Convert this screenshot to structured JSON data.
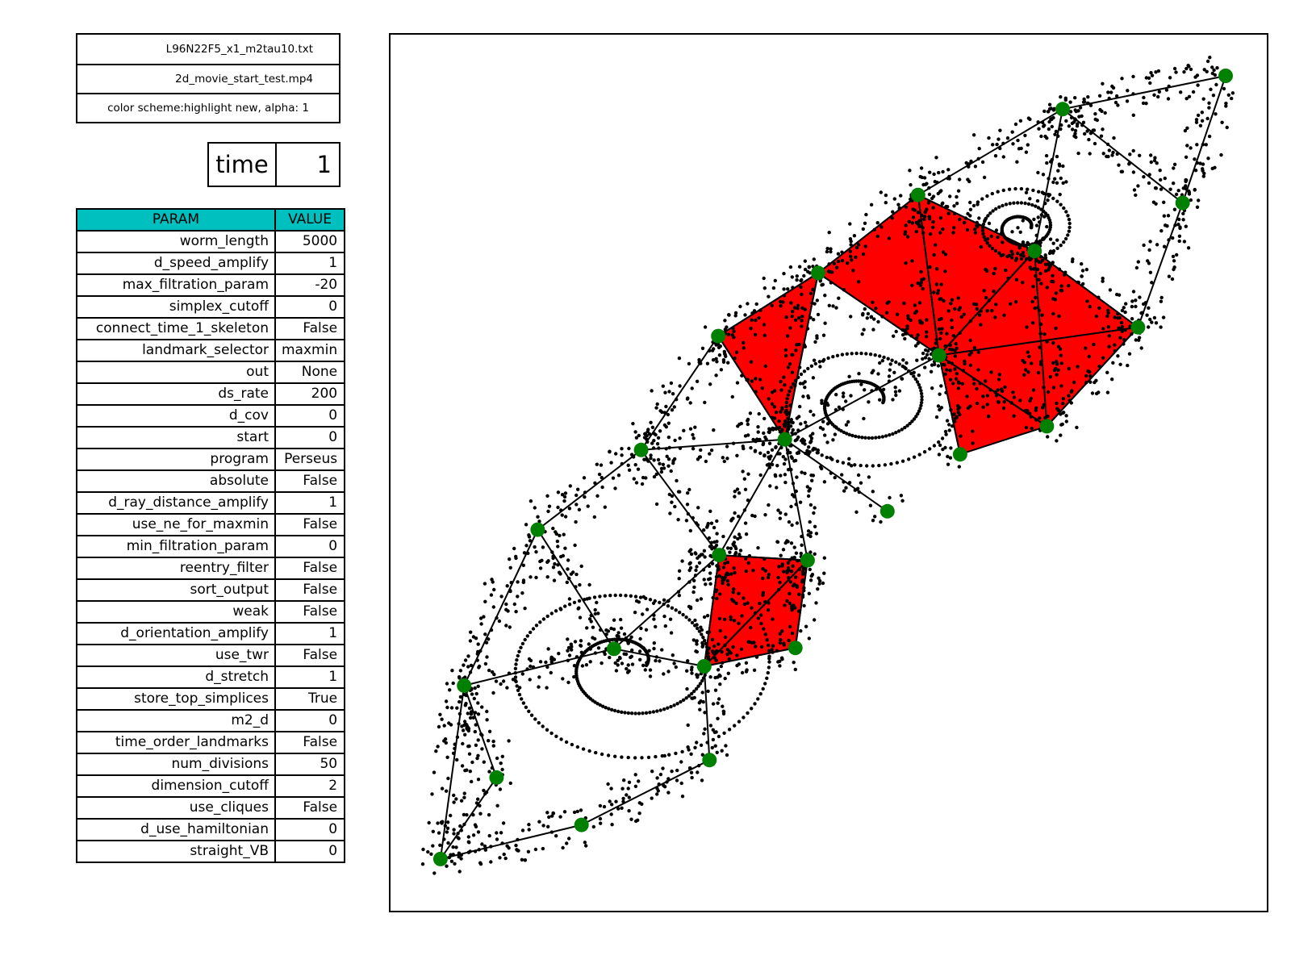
{
  "info": {
    "filename": "L96N22F5_x1_m2tau10.txt",
    "movie": "2d_movie_start_test.mp4",
    "color_scheme": "color scheme:highlight new, alpha: 1"
  },
  "time": {
    "label": "time",
    "value": "1"
  },
  "params_table": {
    "headers": [
      "PARAM",
      "VALUE"
    ],
    "rows": [
      [
        "worm_length",
        "5000"
      ],
      [
        "d_speed_amplify",
        "1"
      ],
      [
        "max_filtration_param",
        "-20"
      ],
      [
        "simplex_cutoff",
        "0"
      ],
      [
        "connect_time_1_skeleton",
        "False"
      ],
      [
        "landmark_selector",
        "maxmin"
      ],
      [
        "out",
        "None"
      ],
      [
        "ds_rate",
        "200"
      ],
      [
        "d_cov",
        "0"
      ],
      [
        "start",
        "0"
      ],
      [
        "program",
        "Perseus"
      ],
      [
        "absolute",
        "False"
      ],
      [
        "d_ray_distance_amplify",
        "1"
      ],
      [
        "use_ne_for_maxmin",
        "False"
      ],
      [
        "min_filtration_param",
        "0"
      ],
      [
        "reentry_filter",
        "False"
      ],
      [
        "sort_output",
        "False"
      ],
      [
        "weak",
        "False"
      ],
      [
        "d_orientation_amplify",
        "1"
      ],
      [
        "use_twr",
        "False"
      ],
      [
        "d_stretch",
        "1"
      ],
      [
        "store_top_simplices",
        "True"
      ],
      [
        "m2_d",
        "0"
      ],
      [
        "time_order_landmarks",
        "False"
      ],
      [
        "num_divisions",
        "50"
      ],
      [
        "dimension_cutoff",
        "2"
      ],
      [
        "use_cliques",
        "False"
      ],
      [
        "d_use_hamiltonian",
        "0"
      ],
      [
        "straight_VB",
        "0"
      ]
    ]
  },
  "chart_data": {
    "type": "scatter",
    "title": "",
    "xlabel": "",
    "ylabel": "",
    "axes_visible": false,
    "xlim": [
      0,
      100
    ],
    "ylim": [
      0,
      100
    ],
    "colors": {
      "landmark": "#008000",
      "point": "#000000",
      "simplex": "#ff0000",
      "edge": "#000000"
    },
    "landmarks": [
      {
        "id": 0,
        "x": 95.3,
        "y": 95.3
      },
      {
        "id": 1,
        "x": 76.7,
        "y": 91.5
      },
      {
        "id": 2,
        "x": 90.4,
        "y": 80.8
      },
      {
        "id": 3,
        "x": 60.2,
        "y": 81.7
      },
      {
        "id": 4,
        "x": 73.5,
        "y": 75.3
      },
      {
        "id": 5,
        "x": 48.8,
        "y": 72.8
      },
      {
        "id": 6,
        "x": 85.3,
        "y": 66.6
      },
      {
        "id": 7,
        "x": 37.4,
        "y": 65.6
      },
      {
        "id": 8,
        "x": 62.6,
        "y": 63.4
      },
      {
        "id": 9,
        "x": 45.0,
        "y": 53.8
      },
      {
        "id": 10,
        "x": 74.9,
        "y": 55.3
      },
      {
        "id": 11,
        "x": 65.0,
        "y": 52.1
      },
      {
        "id": 12,
        "x": 28.6,
        "y": 52.6
      },
      {
        "id": 13,
        "x": 56.7,
        "y": 45.6
      },
      {
        "id": 14,
        "x": 16.8,
        "y": 43.5
      },
      {
        "id": 15,
        "x": 37.5,
        "y": 40.6
      },
      {
        "id": 16,
        "x": 47.6,
        "y": 40.0
      },
      {
        "id": 17,
        "x": 25.5,
        "y": 29.9
      },
      {
        "id": 18,
        "x": 35.8,
        "y": 27.9
      },
      {
        "id": 19,
        "x": 46.2,
        "y": 30.0
      },
      {
        "id": 20,
        "x": 8.4,
        "y": 25.7
      },
      {
        "id": 21,
        "x": 36.4,
        "y": 17.2
      },
      {
        "id": 22,
        "x": 12.1,
        "y": 15.2
      },
      {
        "id": 23,
        "x": 21.8,
        "y": 9.8
      },
      {
        "id": 24,
        "x": 5.7,
        "y": 5.9
      }
    ],
    "edges": [
      [
        0,
        1
      ],
      [
        0,
        2
      ],
      [
        1,
        3
      ],
      [
        1,
        2
      ],
      [
        1,
        4
      ],
      [
        2,
        6
      ],
      [
        3,
        5
      ],
      [
        3,
        4
      ],
      [
        3,
        8
      ],
      [
        5,
        8
      ],
      [
        5,
        7
      ],
      [
        4,
        8
      ],
      [
        4,
        6
      ],
      [
        4,
        10
      ],
      [
        8,
        10
      ],
      [
        8,
        11
      ],
      [
        6,
        10
      ],
      [
        7,
        9
      ],
      [
        7,
        12
      ],
      [
        5,
        9
      ],
      [
        8,
        9
      ],
      [
        9,
        12
      ],
      [
        9,
        15
      ],
      [
        9,
        16
      ],
      [
        9,
        13
      ],
      [
        12,
        14
      ],
      [
        12,
        15
      ],
      [
        15,
        17
      ],
      [
        15,
        18
      ],
      [
        15,
        16
      ],
      [
        16,
        19
      ],
      [
        18,
        19
      ],
      [
        16,
        18
      ],
      [
        14,
        20
      ],
      [
        14,
        17
      ],
      [
        17,
        18
      ],
      [
        17,
        20
      ],
      [
        20,
        22
      ],
      [
        20,
        24
      ],
      [
        18,
        21
      ],
      [
        21,
        23
      ],
      [
        22,
        24
      ],
      [
        23,
        24
      ]
    ],
    "triangles": [
      [
        5,
        7,
        9
      ],
      [
        3,
        5,
        8
      ],
      [
        3,
        4,
        8
      ],
      [
        4,
        8,
        6
      ],
      [
        8,
        6,
        10
      ],
      [
        8,
        10,
        11
      ],
      [
        15,
        16,
        18
      ],
      [
        16,
        18,
        19
      ]
    ]
  }
}
